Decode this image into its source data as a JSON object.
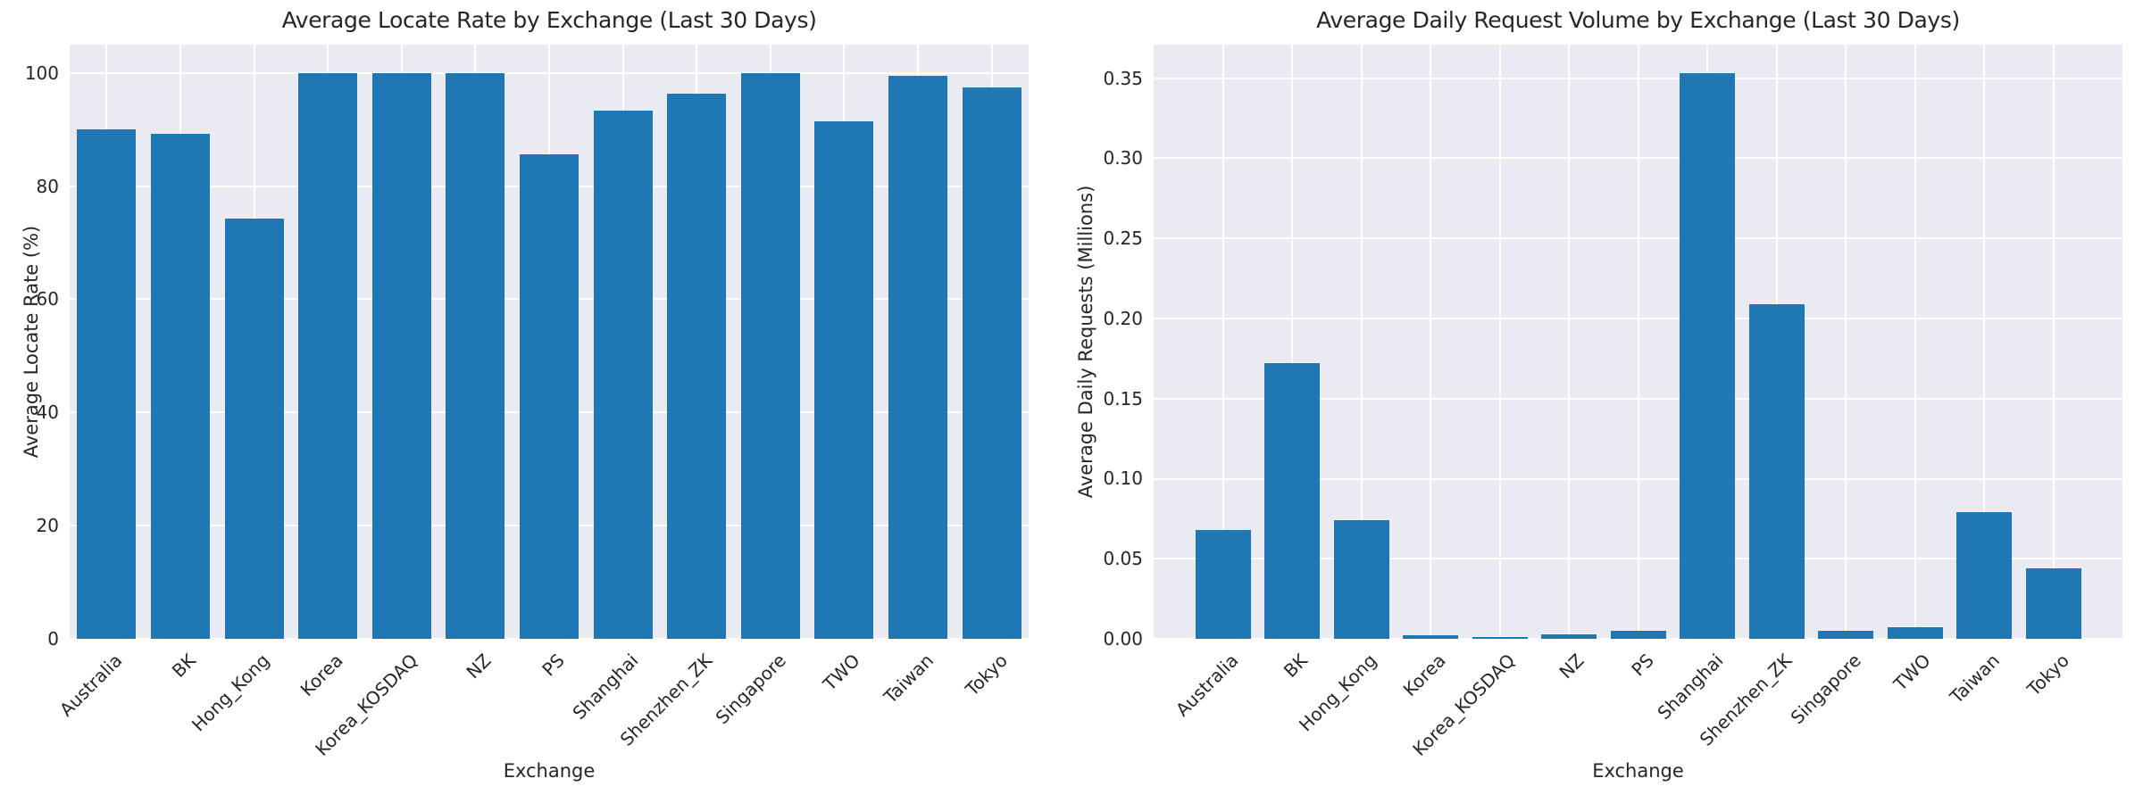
{
  "colors": {
    "bar": "#1f77b4",
    "plot_background": "#eaeaf2",
    "grid": "#ffffff",
    "text": "#262626",
    "figure_background": "#ffffff"
  },
  "chart_data": [
    {
      "type": "bar",
      "title": "Average Locate Rate by Exchange (Last 30 Days)",
      "xlabel": "Exchange",
      "ylabel": "Average Locate Rate (%)",
      "categories": [
        "Australia",
        "BK",
        "Hong_Kong",
        "Korea",
        "Korea_KOSDAQ",
        "NZ",
        "PS",
        "Shanghai",
        "Shenzhen_ZK",
        "Singapore",
        "TWO",
        "Taiwan",
        "Tokyo"
      ],
      "values": [
        90.1,
        89.3,
        74.2,
        100.0,
        100.0,
        100.0,
        85.6,
        93.3,
        96.3,
        100.0,
        91.4,
        99.5,
        97.4
      ],
      "ylim": [
        0,
        105
      ],
      "yticks": [
        0,
        20,
        40,
        60,
        80,
        100
      ],
      "ytick_labels": [
        "0",
        "20",
        "40",
        "60",
        "80",
        "100"
      ],
      "grid": true,
      "legend_position": "none"
    },
    {
      "type": "bar",
      "title": "Average Daily Request Volume by Exchange (Last 30 Days)",
      "xlabel": "Exchange",
      "ylabel": "Average Daily Requests (Millions)",
      "categories": [
        "Australia",
        "BK",
        "Hong_Kong",
        "Korea",
        "Korea_KOSDAQ",
        "NZ",
        "PS",
        "Shanghai",
        "Shenzhen_ZK",
        "Singapore",
        "TWO",
        "Taiwan",
        "Tokyo"
      ],
      "values": [
        0.068,
        0.172,
        0.074,
        0.002,
        0.001,
        0.003,
        0.005,
        0.353,
        0.209,
        0.005,
        0.007,
        0.079,
        0.044
      ],
      "ylim": [
        0,
        0.371
      ],
      "yticks": [
        0,
        0.05,
        0.1,
        0.15,
        0.2,
        0.25,
        0.3,
        0.35
      ],
      "ytick_labels": [
        "0.00",
        "0.05",
        "0.10",
        "0.15",
        "0.20",
        "0.25",
        "0.30",
        "0.35"
      ],
      "grid": true,
      "legend_position": "none"
    }
  ]
}
